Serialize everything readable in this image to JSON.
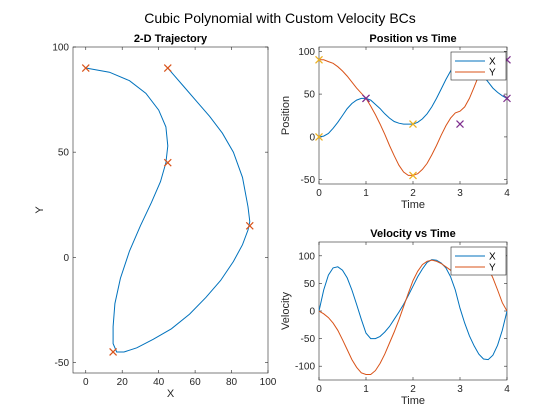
{
  "figure": {
    "suptitle": "Cubic Polynomial with Custom Velocity BCs"
  },
  "colors": {
    "x": "#0072bd",
    "y": "#d95319",
    "waypoint": "#d95319",
    "pos_start": "#edb120",
    "pos_marker": "#7e2f8e"
  },
  "chart_data": [
    {
      "type": "line",
      "title": "2-D Trajectory",
      "xlabel": "X",
      "ylabel": "Y",
      "xlim": [
        -7,
        100
      ],
      "ylim": [
        -55,
        100
      ],
      "xticks": [
        0,
        20,
        40,
        60,
        80,
        100
      ],
      "yticks": [
        -50,
        0,
        50,
        100
      ],
      "series": [
        {
          "x": [
            0,
            13,
            24,
            33,
            40,
            44,
            45,
            44,
            41,
            36,
            30,
            24,
            19,
            16,
            15,
            15,
            17,
            21,
            28,
            37,
            47,
            57,
            66,
            74,
            81,
            86,
            89,
            90,
            89,
            86,
            81,
            75,
            68,
            61,
            54,
            48,
            45
          ],
          "y": [
            90,
            88,
            84,
            78,
            70,
            62,
            53,
            45,
            36,
            26,
            15,
            3,
            -10,
            -22,
            -33,
            -41,
            -45,
            -45,
            -43,
            -39,
            -34,
            -27,
            -19,
            -11,
            -2,
            6,
            13,
            17,
            24,
            38,
            50,
            59,
            67,
            74,
            81,
            87,
            90
          ]
        }
      ],
      "waypoints": {
        "x": [
          0,
          45,
          15,
          90,
          45
        ],
        "y": [
          90,
          45,
          -45,
          15,
          90
        ]
      }
    },
    {
      "type": "line",
      "title": "Position vs Time",
      "xlabel": "Time",
      "ylabel": "Position",
      "xlim": [
        0,
        4
      ],
      "ylim": [
        -55,
        105
      ],
      "xticks": [
        0,
        1,
        2,
        3,
        4
      ],
      "yticks": [
        -50,
        0,
        50,
        100
      ],
      "legend": {
        "entries": [
          "X",
          "Y"
        ],
        "location": "top-right"
      },
      "series": [
        {
          "name": "X",
          "x": [
            0,
            0.1,
            0.2,
            0.3,
            0.4,
            0.5,
            0.6,
            0.7,
            0.8,
            0.9,
            1.0,
            1.1,
            1.2,
            1.3,
            1.4,
            1.5,
            1.6,
            1.7,
            1.8,
            1.9,
            2.0,
            2.1,
            2.2,
            2.3,
            2.4,
            2.5,
            2.6,
            2.7,
            2.8,
            2.9,
            3.0,
            3.1,
            3.2,
            3.3,
            3.4,
            3.5,
            3.6,
            3.7,
            3.8,
            3.9,
            4.0
          ],
          "values": [
            0,
            1,
            4,
            10,
            17,
            25,
            33,
            39,
            43,
            45,
            45,
            43,
            38,
            33,
            27,
            22,
            18,
            16,
            15,
            15,
            15,
            17,
            21,
            27,
            35,
            45,
            56,
            67,
            77,
            85,
            90,
            91,
            89,
            85,
            79,
            71,
            64,
            57,
            52,
            48,
            45
          ]
        },
        {
          "name": "Y",
          "x": [
            0,
            0.1,
            0.2,
            0.3,
            0.4,
            0.5,
            0.6,
            0.7,
            0.8,
            0.9,
            1.0,
            1.1,
            1.2,
            1.3,
            1.4,
            1.5,
            1.6,
            1.7,
            1.8,
            1.9,
            2.0,
            2.1,
            2.2,
            2.3,
            2.4,
            2.5,
            2.6,
            2.7,
            2.8,
            2.9,
            3.0,
            3.1,
            3.2,
            3.3,
            3.4,
            3.5,
            3.6,
            3.7,
            3.8,
            3.9,
            4.0
          ],
          "values": [
            90,
            90,
            88,
            86,
            82,
            77,
            71,
            64,
            57,
            51,
            45,
            36,
            26,
            15,
            3,
            -10,
            -22,
            -33,
            -41,
            -45,
            -45,
            -43,
            -38,
            -31,
            -21,
            -10,
            2,
            13,
            22,
            28,
            30,
            35,
            45,
            58,
            72,
            84,
            92,
            95,
            94,
            92,
            90
          ]
        }
      ],
      "markers": [
        {
          "series": "X",
          "x": [
            0,
            1,
            2,
            3,
            4
          ],
          "y": [
            0,
            45,
            15,
            90,
            45
          ]
        },
        {
          "series": "Y",
          "x": [
            0,
            1,
            2,
            3,
            4
          ],
          "y": [
            90,
            45,
            -45,
            15,
            90
          ]
        }
      ]
    },
    {
      "type": "line",
      "title": "Velocity vs Time",
      "xlabel": "Time",
      "ylabel": "Velocity",
      "xlim": [
        0,
        4
      ],
      "ylim": [
        -125,
        125
      ],
      "xticks": [
        0,
        1,
        2,
        3,
        4
      ],
      "yticks": [
        -100,
        -50,
        0,
        50,
        100
      ],
      "legend": {
        "entries": [
          "X",
          "Y"
        ],
        "location": "top-right"
      },
      "series": [
        {
          "name": "X",
          "x": [
            0,
            0.1,
            0.2,
            0.3,
            0.4,
            0.5,
            0.6,
            0.7,
            0.8,
            0.9,
            1.0,
            1.1,
            1.2,
            1.3,
            1.4,
            1.5,
            1.6,
            1.7,
            1.8,
            1.9,
            2.0,
            2.1,
            2.2,
            2.3,
            2.4,
            2.5,
            2.6,
            2.7,
            2.8,
            2.9,
            3.0,
            3.1,
            3.2,
            3.3,
            3.4,
            3.5,
            3.6,
            3.7,
            3.8,
            3.9,
            4.0
          ],
          "values": [
            0,
            38,
            65,
            78,
            80,
            74,
            60,
            38,
            12,
            -15,
            -40,
            -50,
            -50,
            -46,
            -38,
            -28,
            -15,
            -2,
            12,
            28,
            45,
            62,
            76,
            88,
            93,
            92,
            87,
            78,
            62,
            38,
            5,
            -22,
            -45,
            -63,
            -78,
            -87,
            -88,
            -80,
            -62,
            -35,
            0
          ]
        },
        {
          "name": "Y",
          "x": [
            0,
            0.1,
            0.2,
            0.3,
            0.4,
            0.5,
            0.6,
            0.7,
            0.8,
            0.9,
            1.0,
            1.1,
            1.2,
            1.3,
            1.4,
            1.5,
            1.6,
            1.7,
            1.8,
            1.9,
            2.0,
            2.1,
            2.2,
            2.3,
            2.4,
            2.5,
            2.6,
            2.7,
            2.8,
            2.9,
            3.0,
            3.1,
            3.2,
            3.3,
            3.4,
            3.5,
            3.6,
            3.7,
            3.8,
            3.9,
            4.0
          ],
          "values": [
            0,
            -5,
            -12,
            -22,
            -35,
            -52,
            -70,
            -88,
            -102,
            -112,
            -115,
            -115,
            -108,
            -95,
            -78,
            -58,
            -38,
            -16,
            8,
            32,
            55,
            72,
            84,
            90,
            92,
            90,
            86,
            80,
            74,
            68,
            70,
            82,
            94,
            100,
            100,
            92,
            78,
            60,
            38,
            15,
            0
          ]
        }
      ]
    }
  ]
}
